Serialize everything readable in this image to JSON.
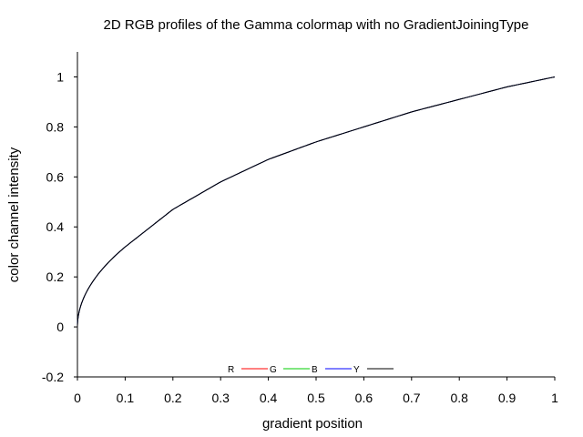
{
  "chart_data": {
    "type": "line",
    "title": "2D RGB profiles of the Gamma colormap with no GradientJoiningType",
    "xlabel": "gradient position",
    "ylabel": "color channel intensity",
    "xlim": [
      0,
      1
    ],
    "ylim": [
      -0.2,
      1.1
    ],
    "x_ticks": [
      "0",
      "0.1",
      "0.2",
      "0.3",
      "0.4",
      "0.5",
      "0.6",
      "0.7",
      "0.8",
      "0.9",
      "1"
    ],
    "y_ticks": [
      "-0.2",
      "0",
      "0.2",
      "0.4",
      "0.6",
      "0.8",
      "1"
    ],
    "grid": false,
    "legend_position": "bottom-center",
    "series": [
      {
        "name": "R",
        "color": "#ff0000",
        "x": [
          0,
          0.1,
          0.2,
          0.3,
          0.4,
          0.5,
          0.6,
          0.7,
          0.8,
          0.9,
          1
        ],
        "y": [
          0,
          0.32,
          0.47,
          0.58,
          0.67,
          0.74,
          0.8,
          0.86,
          0.91,
          0.96,
          1
        ]
      },
      {
        "name": "G",
        "color": "#00cc00",
        "x": [
          0,
          0.1,
          0.2,
          0.3,
          0.4,
          0.5,
          0.6,
          0.7,
          0.8,
          0.9,
          1
        ],
        "y": [
          0,
          0.32,
          0.47,
          0.58,
          0.67,
          0.74,
          0.8,
          0.86,
          0.91,
          0.96,
          1
        ]
      },
      {
        "name": "B",
        "color": "#0000ff",
        "x": [
          0,
          0.1,
          0.2,
          0.3,
          0.4,
          0.5,
          0.6,
          0.7,
          0.8,
          0.9,
          1
        ],
        "y": [
          0,
          0.32,
          0.47,
          0.58,
          0.67,
          0.74,
          0.8,
          0.86,
          0.91,
          0.96,
          1
        ]
      },
      {
        "name": "Y",
        "color": "#000000",
        "x": [
          0,
          0.1,
          0.2,
          0.3,
          0.4,
          0.5,
          0.6,
          0.7,
          0.8,
          0.9,
          1
        ],
        "y": [
          0,
          0.32,
          0.47,
          0.58,
          0.67,
          0.74,
          0.8,
          0.86,
          0.91,
          0.96,
          1
        ]
      }
    ]
  }
}
